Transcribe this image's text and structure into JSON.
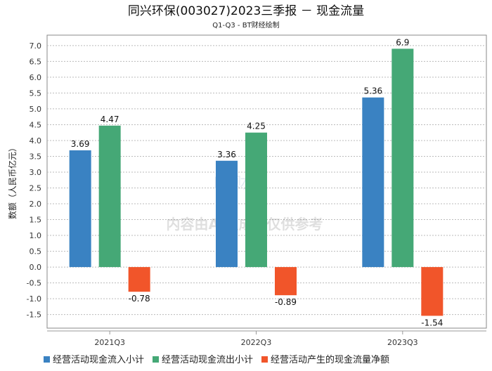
{
  "chart_data": {
    "type": "bar",
    "title": "同兴环保(003027)2023三季报 － 现金流量",
    "subtitle": "Q1-Q3 - BT财经绘制",
    "xlabel": "",
    "ylabel": "数额（人民币亿元）",
    "ylim": [
      -1.93,
      7.33
    ],
    "yticks": [
      7.0,
      6.5,
      6.0,
      5.5,
      5.0,
      4.5,
      4.0,
      3.5,
      3.0,
      2.5,
      2.0,
      1.5,
      1.0,
      0.5,
      0.0,
      -0.5,
      -1.0,
      -1.5
    ],
    "grid": true,
    "legend_position": "bottom",
    "categories": [
      "2021Q3",
      "2022Q3",
      "2023Q3"
    ],
    "series": [
      {
        "name": "经营活动现金流入小计",
        "color": "#3a82c2",
        "values": [
          3.69,
          3.36,
          5.36
        ],
        "labels": [
          "3.69",
          "3.36",
          "5.36"
        ]
      },
      {
        "name": "经营活动现金流出小计",
        "color": "#45a876",
        "values": [
          4.47,
          4.25,
          6.9
        ],
        "labels": [
          "4.47",
          "4.25",
          "6.9"
        ]
      },
      {
        "name": "经营活动产生的现金流量净额",
        "color": "#f1552a",
        "values": [
          -0.78,
          -0.89,
          -1.54
        ],
        "labels": [
          "-0.78",
          "-0.89",
          "-1.54"
        ]
      }
    ]
  },
  "watermark": {
    "logo": "BT财经 BUSINESS TIMES",
    "notice": "内容由AI生成，仅供参考"
  }
}
